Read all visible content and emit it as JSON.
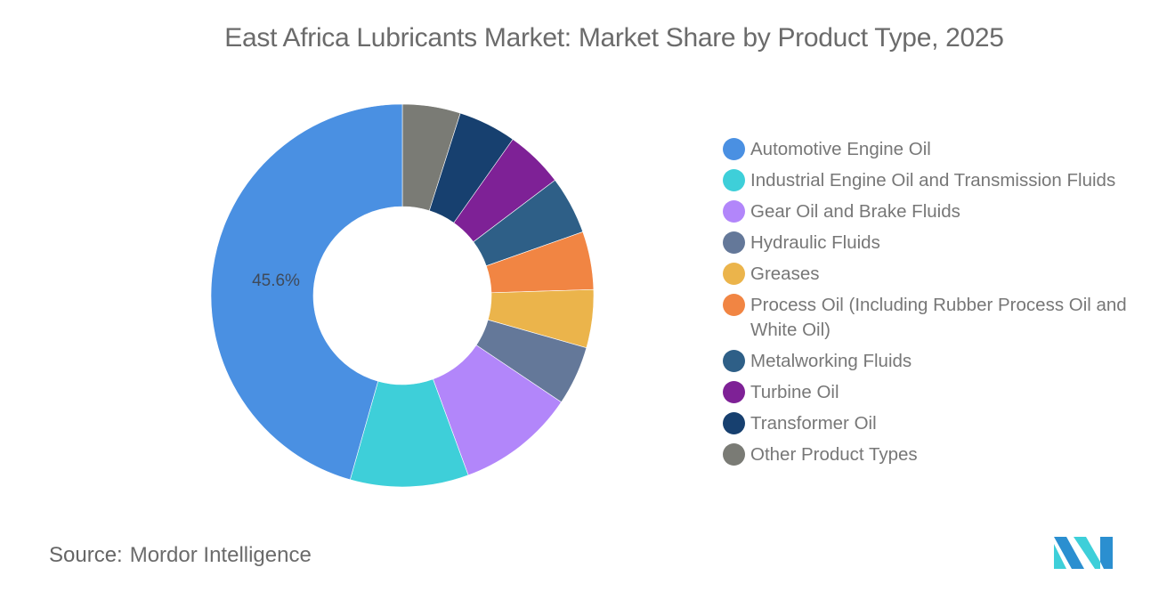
{
  "header": {
    "title": "East Africa Lubricants Market: Market Share by Product Type, 2025"
  },
  "chart_data": {
    "type": "pie",
    "subtype": "donut",
    "title": "East Africa Lubricants Market: Market Share by Product Type, 2025",
    "start_angle_deg": 0,
    "direction": "counterclockwise-from-top-for-first-slice-then-legend-order-reversed",
    "categories": [
      "Automotive Engine Oil",
      "Industrial Engine Oil and Transmission Fluids",
      "Gear Oil and Brake Fluids",
      "Hydraulic Fluids",
      "Greases",
      "Process Oil (Including Rubber Process Oil and White Oil)",
      "Metalworking Fluids",
      "Turbine Oil",
      "Transformer Oil",
      "Other Product Types"
    ],
    "values": [
      45.6,
      10.0,
      10.0,
      5.0,
      4.9,
      4.9,
      4.9,
      4.9,
      4.9,
      4.9
    ],
    "colors": [
      "#4a90e2",
      "#3ecfd9",
      "#b286fa",
      "#647899",
      "#ebb44b",
      "#f18543",
      "#2e5f87",
      "#7e2196",
      "#17406f",
      "#7a7b75"
    ],
    "data_labels": [
      {
        "category": "Automotive Engine Oil",
        "text": "45.6%"
      }
    ],
    "legend_position": "right",
    "unit": "%"
  },
  "legend": {
    "items": [
      {
        "label": "Automotive Engine Oil",
        "color": "#4a90e2"
      },
      {
        "label": "Industrial Engine Oil and Transmission Fluids",
        "color": "#3ecfd9"
      },
      {
        "label": "Gear Oil and Brake Fluids",
        "color": "#b286fa"
      },
      {
        "label": "Hydraulic Fluids",
        "color": "#647899"
      },
      {
        "label": "Greases",
        "color": "#ebb44b"
      },
      {
        "label": "Process Oil (Including Rubber Process Oil and White Oil)",
        "color": "#f18543"
      },
      {
        "label": "Metalworking Fluids",
        "color": "#2e5f87"
      },
      {
        "label": "Turbine Oil",
        "color": "#7e2196"
      },
      {
        "label": "Transformer Oil",
        "color": "#17406f"
      },
      {
        "label": "Other Product Types",
        "color": "#7a7b75"
      }
    ]
  },
  "footer": {
    "source_label": "Source:",
    "source_value": "Mordor Intelligence"
  },
  "logo": {
    "icon": "mordor-intelligence-logo-icon",
    "colors": [
      "#2b8fd0",
      "#3ecfd9"
    ]
  }
}
